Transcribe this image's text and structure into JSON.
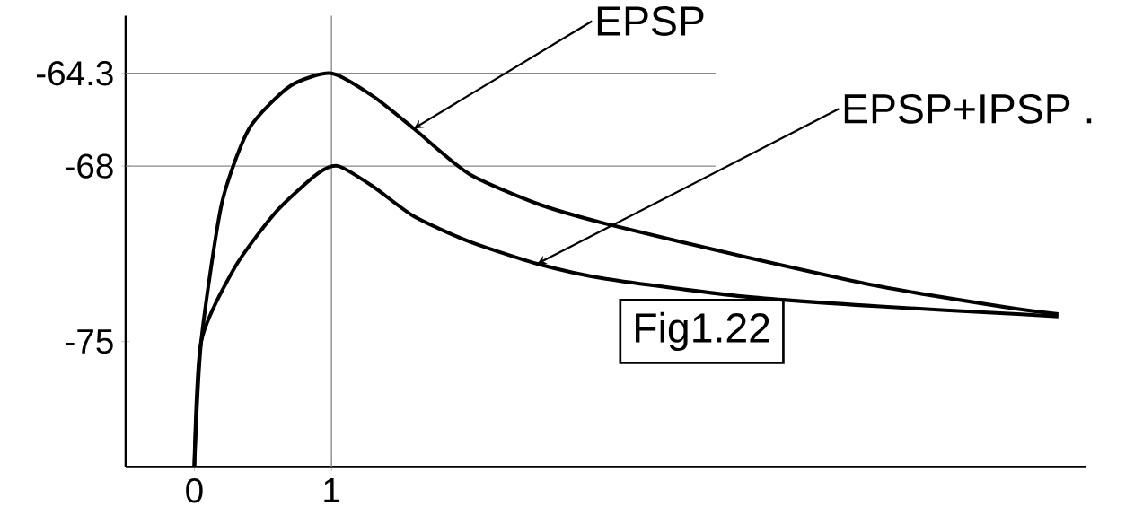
{
  "chart_data": {
    "type": "line",
    "series": [
      {
        "name": "EPSP",
        "color": "#000000",
        "x": [
          0,
          0.05,
          0.2,
          0.4,
          0.7,
          1,
          1.3,
          1.6,
          2,
          2.5,
          3,
          4,
          5,
          6,
          6.3
        ],
        "values": [
          -80,
          -75,
          -69.5,
          -66.5,
          -64.8,
          -64.3,
          -65.2,
          -66.5,
          -68.3,
          -69.5,
          -70.3,
          -71.6,
          -72.8,
          -73.7,
          -73.9
        ]
      },
      {
        "name": "EPSP+IPSP .",
        "color": "#000000",
        "x": [
          0,
          0.05,
          0.3,
          0.6,
          0.9,
          1.05,
          1.3,
          1.6,
          2,
          2.5,
          3,
          4,
          5,
          6,
          6.3
        ],
        "values": [
          -80,
          -75,
          -72,
          -69.8,
          -68.3,
          -68,
          -68.8,
          -70,
          -71,
          -71.9,
          -72.5,
          -73.2,
          -73.6,
          -73.9,
          -74
        ]
      }
    ],
    "xlim": [
      -0.5,
      6.5
    ],
    "ylim": [
      -80,
      -62
    ],
    "xticks": [
      0,
      1
    ],
    "yticks": [
      -75,
      -68,
      -64.3
    ],
    "ref_lines": [
      {
        "axis": "y",
        "value": -64.3,
        "color": "#888888"
      },
      {
        "axis": "y",
        "value": -68,
        "color": "#888888"
      },
      {
        "axis": "x",
        "value": 1,
        "color": "#888888"
      }
    ],
    "annotations": [
      "Fig1.22"
    ],
    "legend": false,
    "grid": false,
    "marker": "none",
    "line_style": "solid"
  }
}
